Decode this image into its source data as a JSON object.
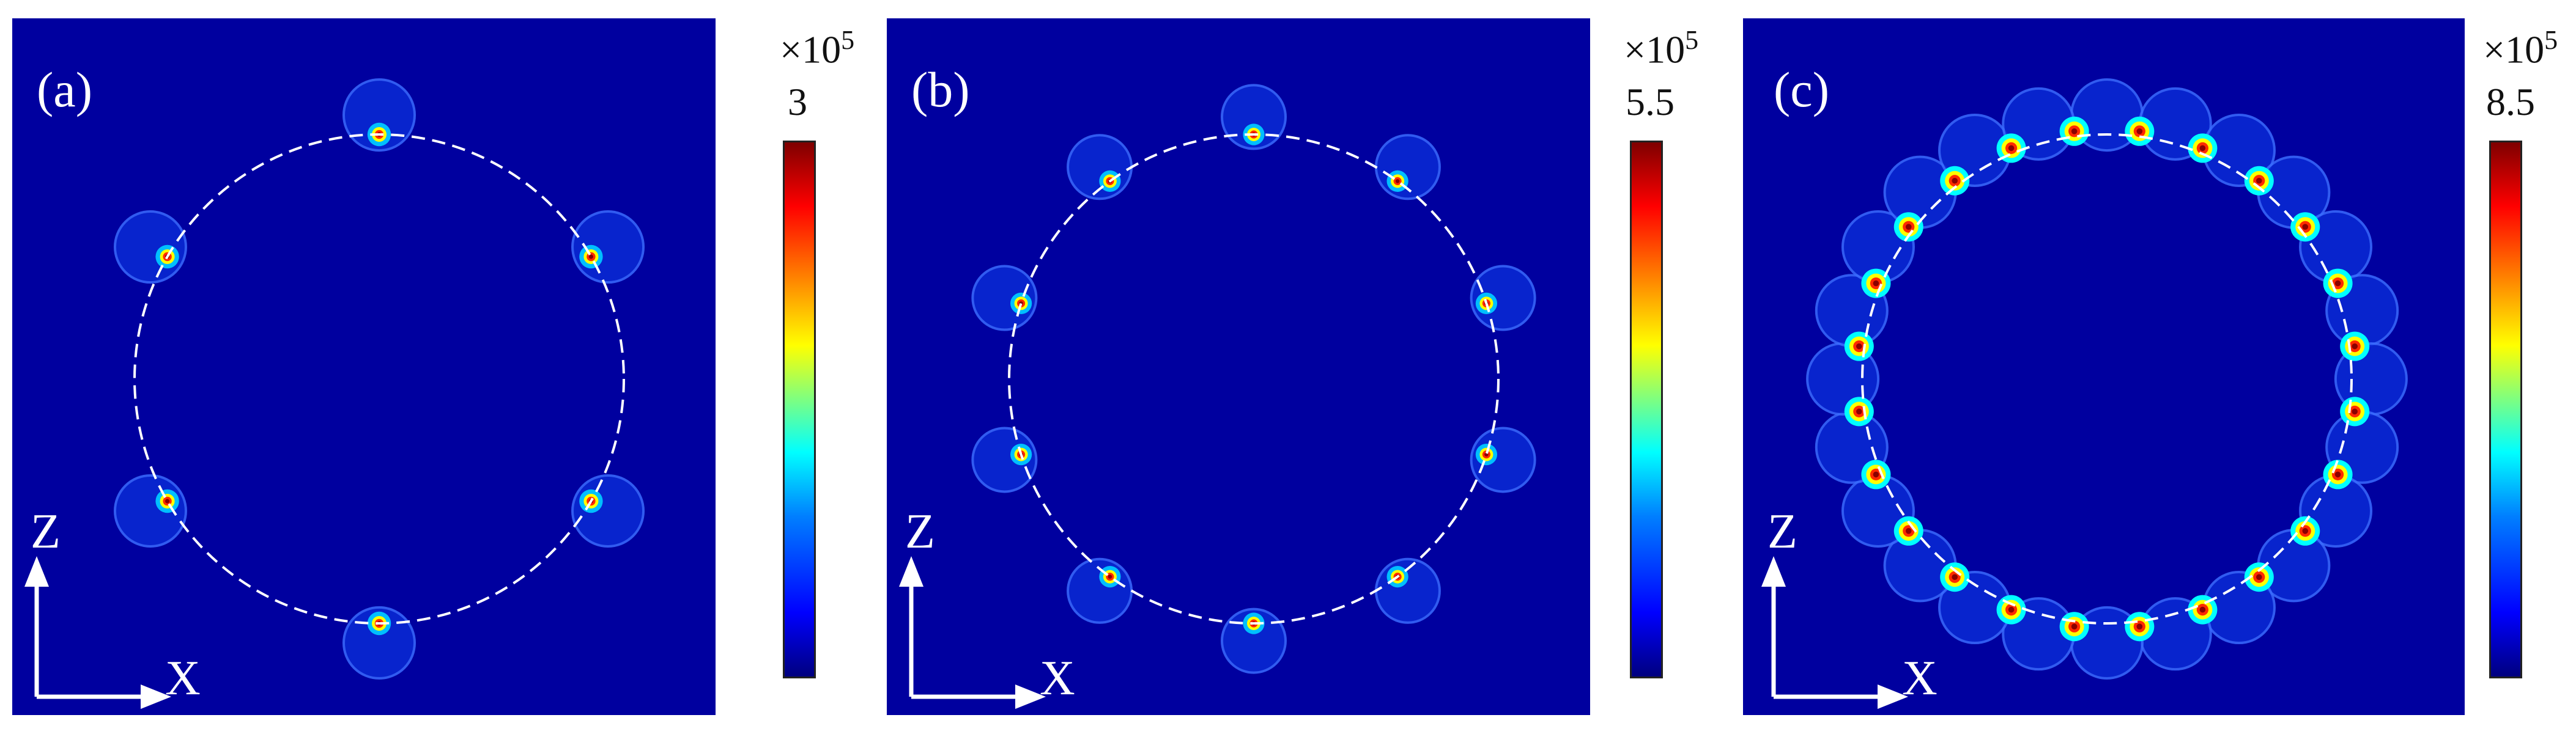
{
  "panels": [
    {
      "label": "(a)",
      "colorbar": {
        "multiplier": "×10",
        "exponent": "5",
        "max": "3"
      },
      "axes": {
        "vertical": "Z",
        "horizontal": "X"
      }
    },
    {
      "label": "(b)",
      "colorbar": {
        "multiplier": "×10",
        "exponent": "5",
        "max": "5.5"
      },
      "axes": {
        "vertical": "Z",
        "horizontal": "X"
      }
    },
    {
      "label": "(c)",
      "colorbar": {
        "multiplier": "×10",
        "exponent": "5",
        "max": "8.5"
      },
      "axes": {
        "vertical": "Z",
        "horizontal": "X"
      }
    }
  ],
  "colors": {
    "background_field": "#00009f",
    "colormap": [
      "#00007f",
      "#0000ff",
      "#007fff",
      "#00ffff",
      "#7fff7f",
      "#ffff00",
      "#ff7f00",
      "#ff0000",
      "#7f0000"
    ],
    "ring_outline": "#ffffff"
  }
}
